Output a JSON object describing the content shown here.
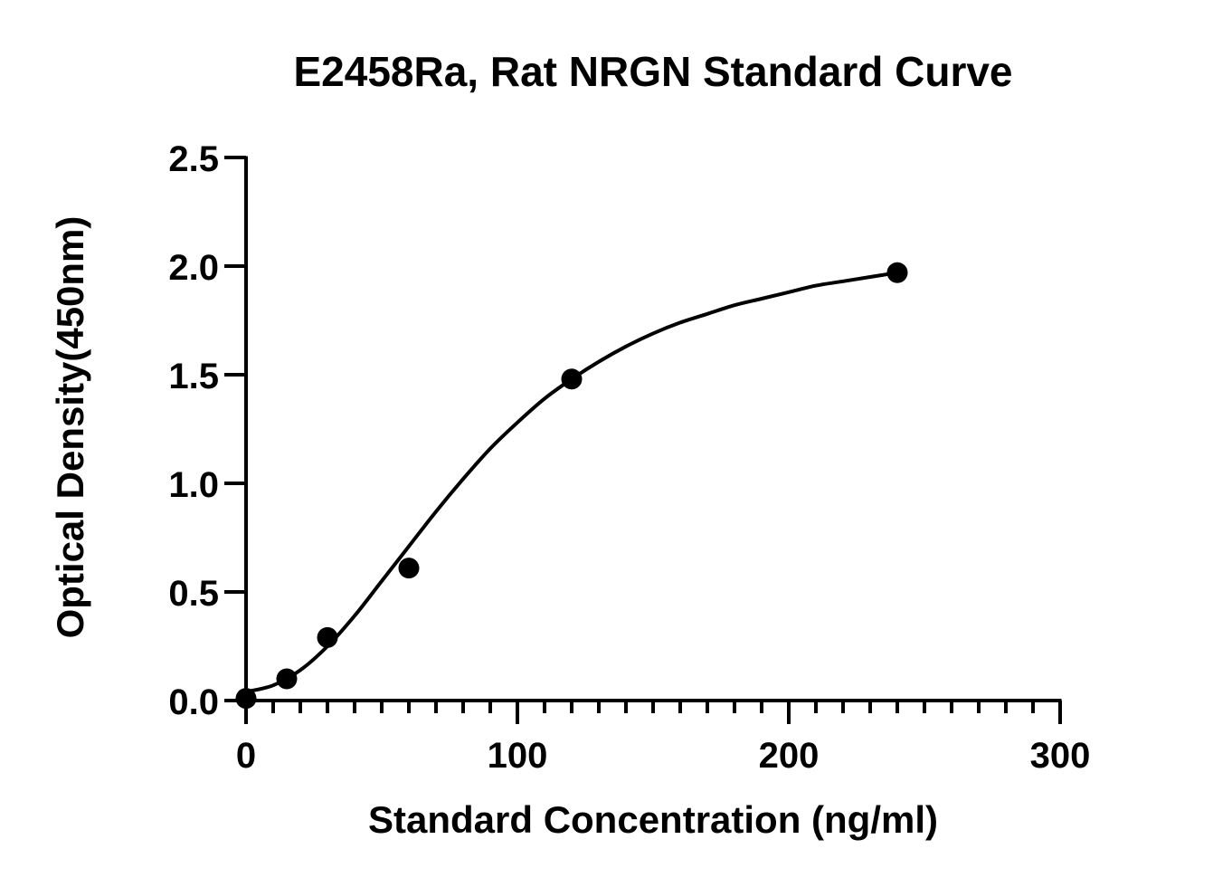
{
  "chart_data": {
    "type": "scatter",
    "title": "E2458Ra, Rat NRGN Standard Curve",
    "xlabel": "Standard Concentration (ng/ml)",
    "ylabel": "Optical Density(450nm)",
    "xlim": [
      0,
      300
    ],
    "ylim": [
      0,
      2.5
    ],
    "x_ticks": [
      0,
      100,
      200,
      300
    ],
    "x_tick_labels": [
      "0",
      "100",
      "200",
      "300"
    ],
    "x_minor_step": 10,
    "y_ticks": [
      0,
      0.5,
      1.0,
      1.5,
      2.0,
      2.5
    ],
    "y_tick_labels": [
      "0.0",
      "0.5",
      "1.0",
      "1.5",
      "2.0",
      "2.5"
    ],
    "grid": false,
    "legend": "none",
    "series": [
      {
        "marker": "circle",
        "fit_line": "smooth",
        "x": [
          0,
          15,
          30,
          60,
          120,
          240
        ],
        "y": [
          0.01,
          0.1,
          0.29,
          0.61,
          1.48,
          1.97
        ]
      }
    ],
    "fit_curve": {
      "x": [
        0,
        10,
        20,
        30,
        40,
        50,
        60,
        70,
        80,
        90,
        100,
        110,
        120,
        130,
        140,
        150,
        160,
        170,
        180,
        190,
        200,
        210,
        220,
        230,
        240
      ],
      "y": [
        0.04,
        0.07,
        0.14,
        0.25,
        0.39,
        0.55,
        0.71,
        0.87,
        1.02,
        1.16,
        1.28,
        1.39,
        1.48,
        1.56,
        1.63,
        1.69,
        1.74,
        1.78,
        1.82,
        1.85,
        1.88,
        1.91,
        1.93,
        1.95,
        1.97
      ]
    },
    "colors": {
      "axis": "#000000",
      "marker": "#000000",
      "line": "#000000",
      "background": "#ffffff"
    }
  }
}
